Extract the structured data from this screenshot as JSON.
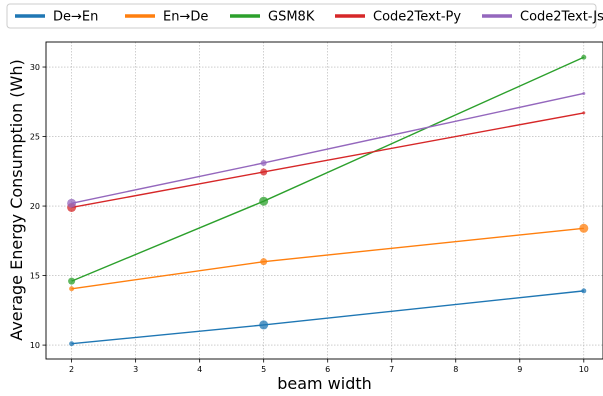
{
  "chart_data": {
    "type": "line",
    "title": "",
    "xlabel": "beam width",
    "ylabel": "Average Energy Consumption (Wh)",
    "xlim": [
      1.6,
      10.3
    ],
    "ylim": [
      9.0,
      31.8
    ],
    "xticks": [
      2,
      3,
      4,
      5,
      6,
      7,
      8,
      9,
      10
    ],
    "yticks": [
      10,
      15,
      20,
      25,
      30
    ],
    "grid": true,
    "legend_position": "top",
    "x": [
      2,
      5,
      10
    ],
    "series": [
      {
        "name": "De→En",
        "color": "#1f77b4",
        "values": [
          10.1,
          11.45,
          13.9
        ],
        "marker_sizes": [
          2.5,
          4.5,
          2.5
        ]
      },
      {
        "name": "En→De",
        "color": "#ff7f0e",
        "values": [
          14.05,
          16.0,
          18.4
        ],
        "marker_sizes": [
          2.5,
          3.5,
          4.5
        ]
      },
      {
        "name": "GSM8K",
        "color": "#2ca02c",
        "values": [
          14.6,
          20.35,
          30.7
        ],
        "marker_sizes": [
          3.5,
          4.5,
          2.5
        ]
      },
      {
        "name": "Code2Text-Py",
        "color": "#d62728",
        "values": [
          19.9,
          22.45,
          26.7
        ],
        "marker_sizes": [
          4.5,
          3.5,
          1.5
        ]
      },
      {
        "name": "Code2Text-Js",
        "color": "#9467bd",
        "values": [
          20.2,
          23.1,
          28.1
        ],
        "marker_sizes": [
          4.5,
          3.0,
          1.5
        ]
      }
    ]
  }
}
